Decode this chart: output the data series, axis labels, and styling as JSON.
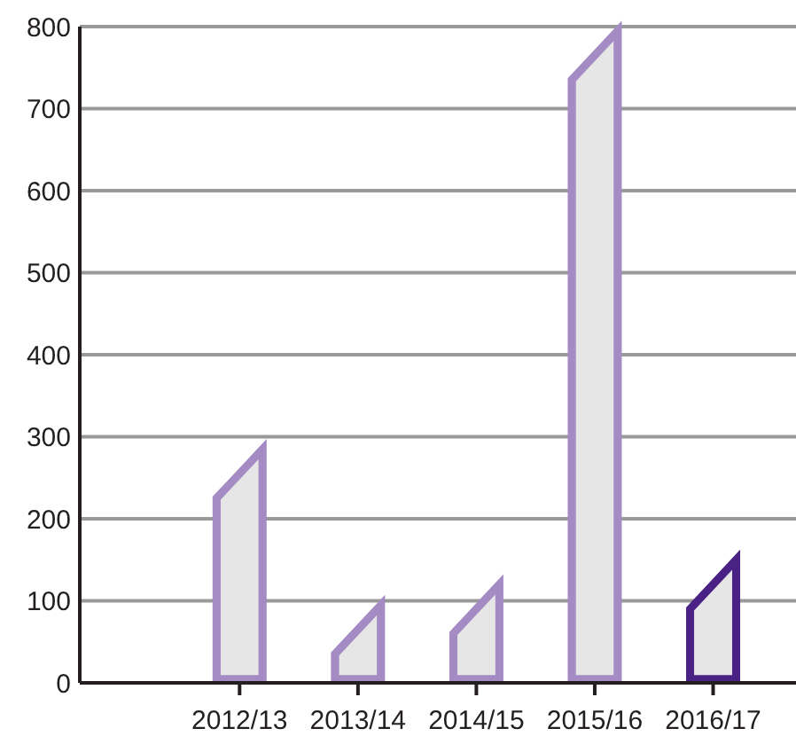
{
  "chart_data": {
    "type": "bar",
    "categories": [
      "2012/13",
      "2013/14",
      "2014/15",
      "2015/16",
      "2016/17"
    ],
    "values": [
      285,
      95,
      120,
      795,
      150
    ],
    "colors": [
      "#a48bc3",
      "#a48bc3",
      "#a48bc3",
      "#a48bc3",
      "#4a2285"
    ],
    "ylim": [
      0,
      800
    ],
    "yticks": [
      0,
      100,
      200,
      300,
      400,
      500,
      600,
      700,
      800
    ],
    "grid": "y"
  }
}
